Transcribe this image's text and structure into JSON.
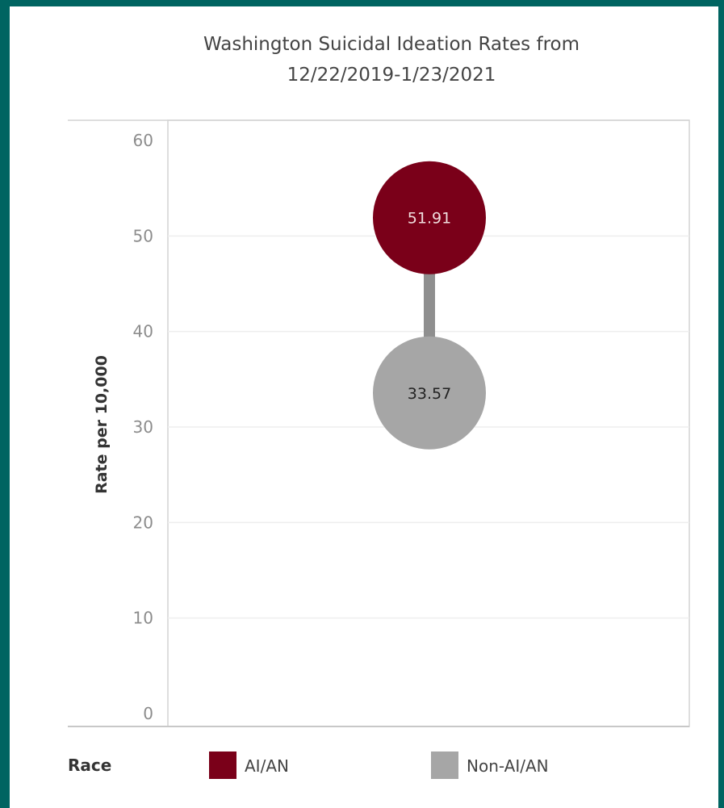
{
  "colors": {
    "page_border": "#006461",
    "panel": "#ffffff",
    "ai_an": "#7a0019",
    "non_ai_an": "#a6a6a6",
    "connector": "#8f8f8f",
    "gridline": "#eeeeee"
  },
  "legend": {
    "title": "Race",
    "items": [
      {
        "label": "AI/AN",
        "color": "#7a0019"
      },
      {
        "label": "Non-AI/AN",
        "color": "#a6a6a6"
      }
    ]
  },
  "chart_data": {
    "type": "scatter",
    "variant": "dumbbell",
    "title": "Washington Suicidal Ideation Rates from 12/22/2019-1/23/2021",
    "title_lines": [
      "Washington Suicidal Ideation Rates from",
      "12/22/2019-1/23/2021"
    ],
    "xlabel": "",
    "ylabel": "Rate per 10,000",
    "ylim": [
      0,
      60
    ],
    "yticks": [
      0,
      10,
      20,
      30,
      40,
      50,
      60
    ],
    "grid": true,
    "legend_position": "bottom",
    "series": [
      {
        "name": "AI/AN",
        "value": 51.91,
        "label": "51.91",
        "color": "#7a0019",
        "label_color": "#f0dede"
      },
      {
        "name": "Non-AI/AN",
        "value": 33.57,
        "label": "33.57",
        "color": "#a6a6a6",
        "label_color": "#222222"
      }
    ]
  }
}
